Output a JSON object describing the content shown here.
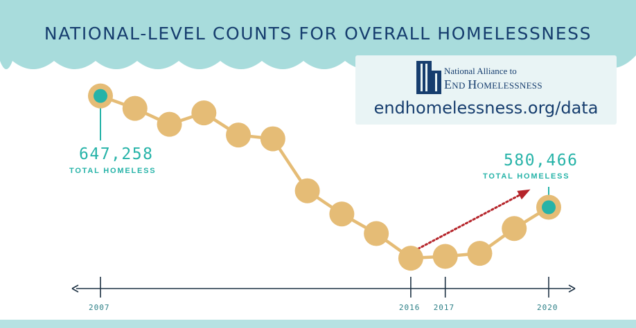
{
  "title": "NATIONAL-LEVEL COUNTS FOR OVERALL HOMELESSNESS",
  "logo": {
    "org_line1": "National Alliance to",
    "org_line2_first": "E",
    "org_line2_first_rest": "ND ",
    "org_line2_second": "H",
    "org_line2_second_rest": "OMELESSNESS",
    "url": "endhomelessness.org/data"
  },
  "annotations": {
    "start_value": "647,258",
    "start_label": "TOTAL HOMELESS",
    "end_value": "580,466",
    "end_label": "TOTAL HOMELESS"
  },
  "colors": {
    "banner": "#a8dcdc",
    "point": "#e5bc76",
    "highlight": "#26b3a8",
    "trend_arrow": "#b5242a",
    "axis": "#1f3345",
    "bottom_bar": "#b6e2e2"
  },
  "chart_data": {
    "type": "line",
    "title": "NATIONAL-LEVEL COUNTS FOR OVERALL HOMELESSNESS",
    "xlabel": "",
    "ylabel": "",
    "x": [
      2007,
      2008,
      2009,
      2010,
      2011,
      2012,
      2013,
      2014,
      2015,
      2016,
      2017,
      2018,
      2019,
      2020
    ],
    "values": [
      647258,
      639784,
      630227,
      637077,
      623788,
      621553,
      590364,
      576450,
      564708,
      549928,
      550996,
      552830,
      567715,
      580466
    ],
    "x_tick_labels": [
      "2007",
      "2016",
      "2017",
      "2020"
    ],
    "ylim": [
      540000,
      655000
    ],
    "grid": false,
    "legend": "none",
    "highlighted_points": [
      2007,
      2020
    ],
    "trend_arrow": {
      "from": 2016,
      "to": 2020
    }
  }
}
